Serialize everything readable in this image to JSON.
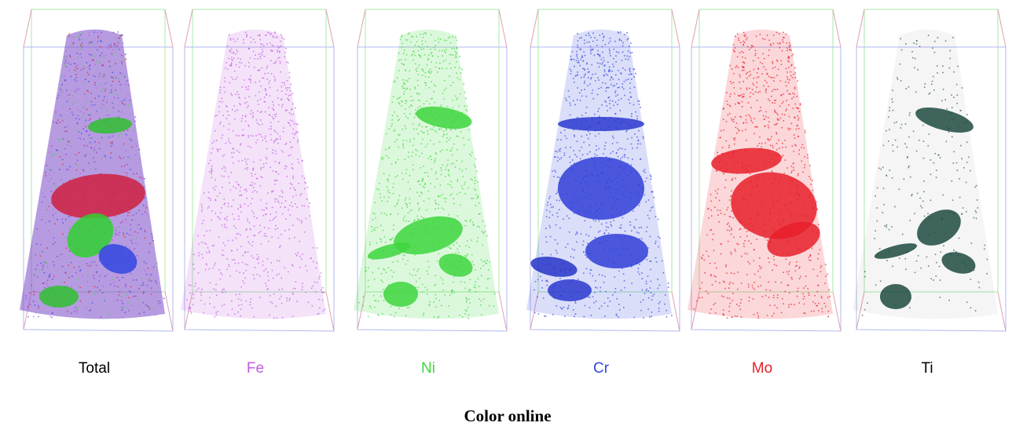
{
  "panels": [
    {
      "label": "Total",
      "color": "#000000"
    },
    {
      "label": "Fe",
      "color": "#c05ce0"
    },
    {
      "label": "Ni",
      "color": "#3ed63e"
    },
    {
      "label": "Cr",
      "color": "#3346e0"
    },
    {
      "label": "Mo",
      "color": "#e8202a"
    },
    {
      "label": "Ti",
      "color": "#000000"
    }
  ],
  "caption": "Color online"
}
